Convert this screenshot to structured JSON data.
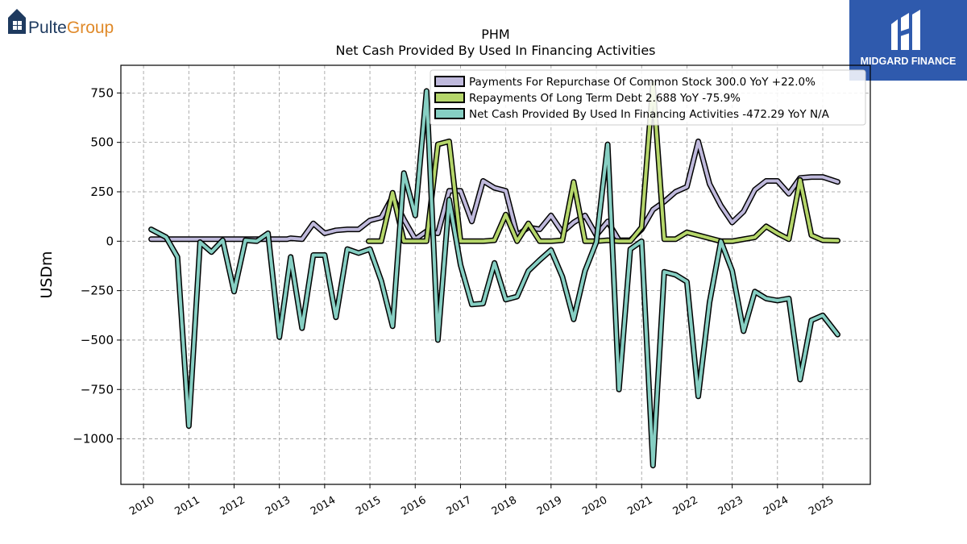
{
  "logos": {
    "left_brand": "PulteGroup",
    "left_brand_part1": "Pulte",
    "left_brand_part2": "Group",
    "right_brand": "MIDGARD FINANCE",
    "left_color_dark": "#1e3a5f",
    "left_color_accent": "#e08a2a",
    "right_bg": "#2f5aad"
  },
  "chart_data": {
    "type": "line",
    "title": "PHM",
    "subtitle": "Net Cash Provided By Used In Financing Activities",
    "xlabel": "",
    "ylabel": "USDm",
    "ylim": [
      -1230,
      890
    ],
    "xlim": [
      2009.5,
      2026.05
    ],
    "yticks": [
      750,
      500,
      250,
      0,
      -250,
      -500,
      -750,
      -1000
    ],
    "ytick_labels": [
      "750",
      "500",
      "250",
      "0",
      "−250",
      "−500",
      "−750",
      "−1000"
    ],
    "xticks": [
      2010,
      2011,
      2012,
      2013,
      2014,
      2015,
      2016,
      2017,
      2018,
      2019,
      2020,
      2021,
      2022,
      2023,
      2024,
      2025
    ],
    "xtick_labels": [
      "2010",
      "2011",
      "2012",
      "2013",
      "2014",
      "2015",
      "2016",
      "2017",
      "2018",
      "2019",
      "2020",
      "2021",
      "2022",
      "2023",
      "2024",
      "2025"
    ],
    "grid": true,
    "legend_position": "top-right",
    "series": [
      {
        "name": "Payments For Repurchase Of Common Stock",
        "legend_label": "Payments For Repurchase Of Common Stock  300.0 YoY +22.0%",
        "color": "#bfb9dc",
        "points": [
          [
            2010.17,
            10
          ],
          [
            2010.42,
            10
          ],
          [
            2010.67,
            10
          ],
          [
            2010.92,
            10
          ],
          [
            2011.17,
            10
          ],
          [
            2011.42,
            10
          ],
          [
            2011.67,
            10
          ],
          [
            2011.92,
            10
          ],
          [
            2012.17,
            10
          ],
          [
            2012.42,
            10
          ],
          [
            2012.67,
            10
          ],
          [
            2012.92,
            10
          ],
          [
            2013.17,
            10
          ],
          [
            2013.25,
            15
          ],
          [
            2013.5,
            10
          ],
          [
            2013.75,
            90
          ],
          [
            2014.0,
            40
          ],
          [
            2014.25,
            55
          ],
          [
            2014.5,
            60
          ],
          [
            2014.75,
            60
          ],
          [
            2015.0,
            105
          ],
          [
            2015.25,
            120
          ],
          [
            2015.5,
            225
          ],
          [
            2015.75,
            110
          ],
          [
            2016.0,
            10
          ],
          [
            2016.25,
            50
          ],
          [
            2016.5,
            40
          ],
          [
            2016.75,
            255
          ],
          [
            2017.0,
            255
          ],
          [
            2017.25,
            100
          ],
          [
            2017.5,
            305
          ],
          [
            2017.75,
            270
          ],
          [
            2018.0,
            255
          ],
          [
            2018.25,
            30
          ],
          [
            2018.5,
            70
          ],
          [
            2018.75,
            60
          ],
          [
            2019.0,
            130
          ],
          [
            2019.25,
            45
          ],
          [
            2019.5,
            95
          ],
          [
            2019.75,
            130
          ],
          [
            2020.0,
            30
          ],
          [
            2020.25,
            100
          ],
          [
            2020.5,
            5
          ],
          [
            2020.75,
            5
          ],
          [
            2021.0,
            60
          ],
          [
            2021.25,
            160
          ],
          [
            2021.5,
            200
          ],
          [
            2021.75,
            250
          ],
          [
            2022.0,
            275
          ],
          [
            2022.25,
            505
          ],
          [
            2022.5,
            290
          ],
          [
            2022.75,
            180
          ],
          [
            2023.0,
            95
          ],
          [
            2023.25,
            150
          ],
          [
            2023.5,
            260
          ],
          [
            2023.75,
            305
          ],
          [
            2024.0,
            305
          ],
          [
            2024.25,
            240
          ],
          [
            2024.5,
            320
          ],
          [
            2024.75,
            325
          ],
          [
            2025.0,
            325
          ],
          [
            2025.33,
            300
          ]
        ]
      },
      {
        "name": "Repayments Of Long Term Debt",
        "legend_label": "Repayments Of Long Term Debt  2.688 YoY -75.9%",
        "color": "#b5d66a",
        "points": [
          [
            2014.97,
            0
          ],
          [
            2015.25,
            0
          ],
          [
            2015.5,
            245
          ],
          [
            2015.75,
            0
          ],
          [
            2016.0,
            0
          ],
          [
            2016.25,
            0
          ],
          [
            2016.5,
            490
          ],
          [
            2016.75,
            505
          ],
          [
            2017.0,
            0
          ],
          [
            2017.25,
            0
          ],
          [
            2017.5,
            0
          ],
          [
            2017.75,
            5
          ],
          [
            2018.0,
            135
          ],
          [
            2018.25,
            0
          ],
          [
            2018.5,
            90
          ],
          [
            2018.75,
            0
          ],
          [
            2019.0,
            0
          ],
          [
            2019.25,
            5
          ],
          [
            2019.5,
            300
          ],
          [
            2019.75,
            0
          ],
          [
            2020.0,
            0
          ],
          [
            2020.25,
            5
          ],
          [
            2020.5,
            0
          ],
          [
            2020.75,
            0
          ],
          [
            2021.0,
            70
          ],
          [
            2021.25,
            800
          ],
          [
            2021.5,
            10
          ],
          [
            2021.75,
            10
          ],
          [
            2022.0,
            45
          ],
          [
            2022.25,
            30
          ],
          [
            2022.5,
            15
          ],
          [
            2022.75,
            0
          ],
          [
            2023.0,
            0
          ],
          [
            2023.25,
            10
          ],
          [
            2023.5,
            20
          ],
          [
            2023.75,
            75
          ],
          [
            2024.0,
            40
          ],
          [
            2024.25,
            10
          ],
          [
            2024.5,
            310
          ],
          [
            2024.75,
            30
          ],
          [
            2025.0,
            5
          ],
          [
            2025.33,
            2.688
          ]
        ]
      },
      {
        "name": "Net Cash Provided By Used In Financing Activities",
        "legend_label": "Net Cash Provided By Used In Financing Activities  -472.29 YoY N/A",
        "color": "#86cfc3",
        "points": [
          [
            2010.17,
            60
          ],
          [
            2010.5,
            20
          ],
          [
            2010.75,
            -80
          ],
          [
            2011.0,
            -935
          ],
          [
            2011.25,
            -5
          ],
          [
            2011.5,
            -55
          ],
          [
            2011.75,
            5
          ],
          [
            2012.0,
            -255
          ],
          [
            2012.25,
            5
          ],
          [
            2012.5,
            0
          ],
          [
            2012.75,
            40
          ],
          [
            2013.0,
            -485
          ],
          [
            2013.25,
            -80
          ],
          [
            2013.5,
            -440
          ],
          [
            2013.75,
            -70
          ],
          [
            2014.0,
            -70
          ],
          [
            2014.25,
            -385
          ],
          [
            2014.5,
            -40
          ],
          [
            2014.75,
            -60
          ],
          [
            2015.0,
            -40
          ],
          [
            2015.25,
            -200
          ],
          [
            2015.5,
            -430
          ],
          [
            2015.75,
            345
          ],
          [
            2016.0,
            130
          ],
          [
            2016.25,
            760
          ],
          [
            2016.5,
            -500
          ],
          [
            2016.75,
            210
          ],
          [
            2017.0,
            -120
          ],
          [
            2017.25,
            -320
          ],
          [
            2017.5,
            -315
          ],
          [
            2017.75,
            -110
          ],
          [
            2018.0,
            -295
          ],
          [
            2018.25,
            -280
          ],
          [
            2018.5,
            -150
          ],
          [
            2018.75,
            -95
          ],
          [
            2019.0,
            -45
          ],
          [
            2019.25,
            -180
          ],
          [
            2019.5,
            -395
          ],
          [
            2019.75,
            -150
          ],
          [
            2020.0,
            -5
          ],
          [
            2020.25,
            490
          ],
          [
            2020.5,
            -750
          ],
          [
            2020.75,
            -40
          ],
          [
            2021.0,
            0
          ],
          [
            2021.25,
            -1135
          ],
          [
            2021.5,
            -155
          ],
          [
            2021.75,
            -170
          ],
          [
            2022.0,
            -205
          ],
          [
            2022.25,
            -785
          ],
          [
            2022.5,
            -310
          ],
          [
            2022.75,
            0
          ],
          [
            2023.0,
            -150
          ],
          [
            2023.25,
            -455
          ],
          [
            2023.5,
            -255
          ],
          [
            2023.75,
            -290
          ],
          [
            2024.0,
            -300
          ],
          [
            2024.25,
            -290
          ],
          [
            2024.5,
            -700
          ],
          [
            2024.75,
            -400
          ],
          [
            2025.0,
            -375
          ],
          [
            2025.33,
            -472.29
          ]
        ]
      }
    ]
  }
}
